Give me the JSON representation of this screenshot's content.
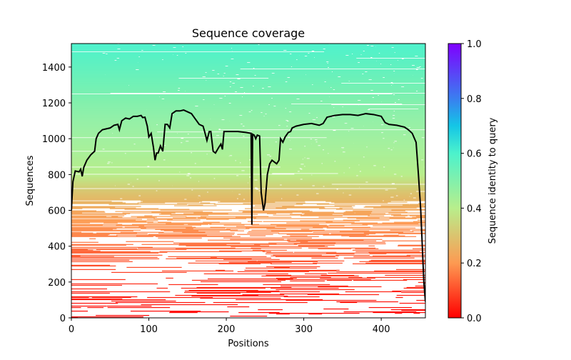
{
  "chart_data": {
    "type": "heatmap",
    "title": "Sequence coverage",
    "xlabel": "Positions",
    "ylabel": "Sequences",
    "xlim": [
      0,
      457
    ],
    "ylim": [
      0,
      1531
    ],
    "xticks": [
      0,
      100,
      200,
      300,
      400
    ],
    "yticks": [
      0,
      200,
      400,
      600,
      800,
      1000,
      1200,
      1400
    ],
    "grid": false,
    "colorbar": {
      "label": "Sequence identity to query",
      "range": [
        0.0,
        1.0
      ],
      "ticks": [
        "0.0",
        "0.2",
        "0.4",
        "0.6",
        "0.8",
        "1.0"
      ],
      "colormap_stops": [
        {
          "v": 0.0,
          "color": "#ff0000"
        },
        {
          "v": 0.2,
          "color": "#fd9a52"
        },
        {
          "v": 0.4,
          "color": "#b8ee8c"
        },
        {
          "v": 0.6,
          "color": "#4cf2cc"
        },
        {
          "v": 0.7,
          "color": "#14c6e6"
        },
        {
          "v": 0.8,
          "color": "#3a7ef0"
        },
        {
          "v": 1.0,
          "color": "#7f00ff"
        }
      ]
    },
    "identity_by_row": [
      [
        0,
        0.0
      ],
      [
        200,
        0.06
      ],
      [
        400,
        0.14
      ],
      [
        600,
        0.23
      ],
      [
        700,
        0.3
      ],
      [
        800,
        0.4
      ],
      [
        1000,
        0.45
      ],
      [
        1200,
        0.5
      ],
      [
        1400,
        0.56
      ],
      [
        1531,
        0.6
      ]
    ],
    "coverage_line": {
      "name": "coverage",
      "color": "#000000",
      "x": [
        0,
        2,
        5,
        10,
        12,
        14,
        16,
        20,
        25,
        30,
        32,
        35,
        40,
        45,
        50,
        55,
        60,
        62,
        65,
        70,
        75,
        80,
        85,
        90,
        92,
        95,
        98,
        100,
        103,
        106,
        108,
        110,
        112,
        115,
        118,
        121,
        124,
        127,
        130,
        135,
        140,
        145,
        150,
        155,
        160,
        165,
        170,
        172,
        175,
        178,
        180,
        183,
        186,
        190,
        193,
        195,
        197,
        205,
        215,
        225,
        232,
        233,
        234,
        236,
        238,
        240,
        243,
        245,
        248,
        250,
        253,
        256,
        259,
        262,
        265,
        268,
        270,
        273,
        276,
        280,
        283,
        285,
        290,
        295,
        300,
        310,
        320,
        325,
        330,
        340,
        350,
        360,
        370,
        380,
        390,
        400,
        405,
        410,
        420,
        430,
        435,
        440,
        445,
        448,
        451,
        453,
        455,
        457
      ],
      "y": [
        600,
        760,
        820,
        815,
        830,
        790,
        840,
        880,
        910,
        930,
        1000,
        1030,
        1050,
        1055,
        1060,
        1075,
        1080,
        1050,
        1100,
        1115,
        1110,
        1125,
        1125,
        1130,
        1118,
        1120,
        1070,
        1010,
        1030,
        950,
        880,
        920,
        920,
        960,
        930,
        1080,
        1080,
        1060,
        1140,
        1155,
        1155,
        1160,
        1150,
        1140,
        1110,
        1080,
        1070,
        1040,
        990,
        1040,
        1040,
        930,
        920,
        950,
        970,
        940,
        1040,
        1040,
        1040,
        1035,
        1030,
        520,
        1025,
        1020,
        1000,
        1020,
        1015,
        700,
        600,
        640,
        800,
        860,
        880,
        870,
        860,
        880,
        1000,
        980,
        1010,
        1035,
        1040,
        1060,
        1070,
        1075,
        1080,
        1085,
        1075,
        1085,
        1120,
        1130,
        1135,
        1135,
        1130,
        1140,
        1135,
        1125,
        1090,
        1080,
        1075,
        1065,
        1050,
        1030,
        980,
        800,
        600,
        400,
        200,
        90
      ]
    }
  }
}
